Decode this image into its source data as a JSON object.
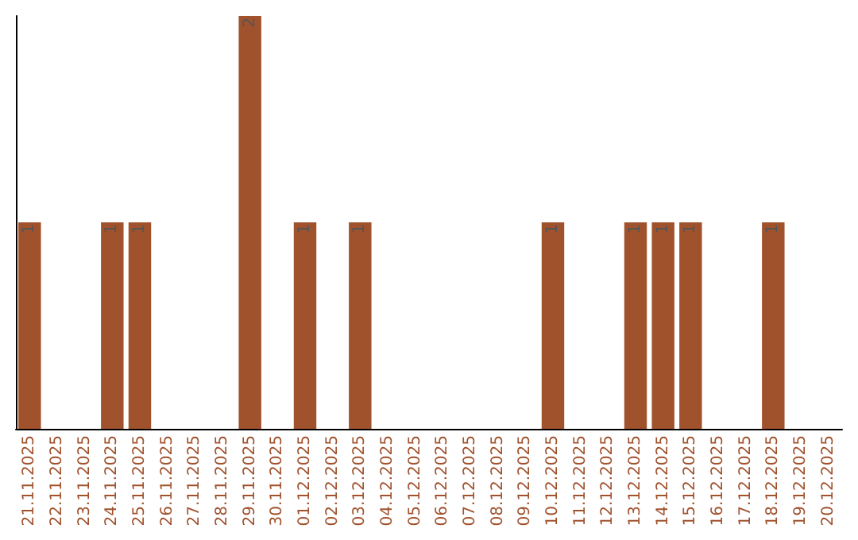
{
  "chart_data": {
    "type": "bar",
    "categories": [
      "21.11.2025",
      "22.11.2025",
      "23.11.2025",
      "24.11.2025",
      "25.11.2025",
      "26.11.2025",
      "27.11.2025",
      "28.11.2025",
      "29.11.2025",
      "30.11.2025",
      "01.12.2025",
      "02.12.2025",
      "03.12.2025",
      "04.12.2025",
      "05.12.2025",
      "06.12.2025",
      "07.12.2025",
      "08.12.2025",
      "09.12.2025",
      "10.12.2025",
      "11.12.2025",
      "12.12.2025",
      "13.12.2025",
      "14.12.2025",
      "15.12.2025",
      "16.12.2025",
      "17.12.2025",
      "18.12.2025",
      "19.12.2025",
      "20.12.2025"
    ],
    "values": [
      1,
      0,
      0,
      1,
      1,
      0,
      0,
      0,
      2,
      0,
      1,
      0,
      1,
      0,
      0,
      0,
      0,
      0,
      0,
      1,
      0,
      0,
      1,
      1,
      1,
      0,
      0,
      1,
      0,
      0
    ],
    "value_labels": [
      "1",
      null,
      null,
      "1",
      "1",
      null,
      null,
      null,
      "2",
      null,
      "1",
      null,
      "1",
      null,
      null,
      null,
      null,
      null,
      null,
      "1",
      null,
      null,
      "1",
      "1",
      "1",
      null,
      null,
      "1",
      null,
      null
    ],
    "color": "#a0522d",
    "tick_labels": "x"
  }
}
